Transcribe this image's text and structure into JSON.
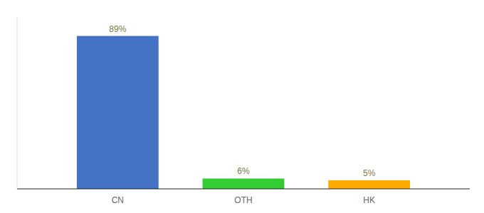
{
  "chart_data": {
    "type": "bar",
    "categories": [
      "CN",
      "OTH",
      "HK"
    ],
    "values": [
      89,
      6,
      5
    ],
    "value_labels": [
      "89%",
      "6%",
      "5%"
    ],
    "colors": [
      "#4472c4",
      "#33cc33",
      "#ffaa00"
    ],
    "ylim": [
      0,
      100
    ],
    "grid": false,
    "data_labels": true,
    "tick_labels": "x"
  }
}
